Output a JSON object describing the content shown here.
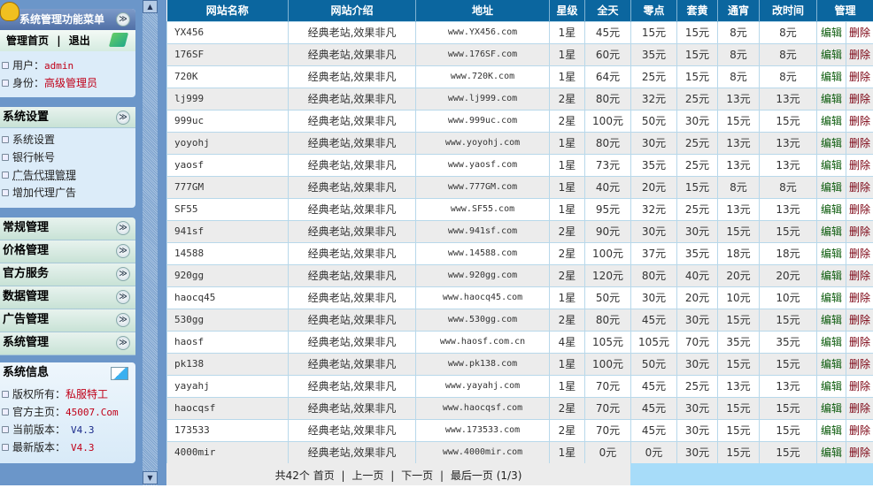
{
  "sidebar": {
    "menu_title": "系统管理功能菜单",
    "home_link": "管理首页",
    "sep": "|",
    "logout_link": "退出",
    "user_label": "用户：",
    "user_value": "admin",
    "role_label": "身份：",
    "role_value": "高级管理员",
    "settings_title": "系统设置",
    "settings_items": [
      "系统设置",
      "银行帐号",
      "广告代理管理",
      "增加代理广告"
    ],
    "sections": [
      "常规管理",
      "价格管理",
      "官方服务",
      "数据管理",
      "广告管理",
      "系统管理"
    ],
    "info_title": "系统信息",
    "info": [
      {
        "label": "版权所有：",
        "value": "私服特工"
      },
      {
        "label": "官方主页：",
        "value": "45007.Com"
      },
      {
        "label": "当前版本：",
        "value": "V4.3"
      },
      {
        "label": "最新版本：",
        "value": "V4.3"
      }
    ]
  },
  "table": {
    "headers": [
      "网站名称",
      "网站介绍",
      "地址",
      "星级",
      "全天",
      "零点",
      "套黄",
      "通宵",
      "改时间",
      "管理"
    ],
    "edit_label": "编辑",
    "delete_label": "删除",
    "rows": [
      [
        "YX456",
        "经典老站,效果非凡",
        "www.YX456.com",
        "1星",
        "45元",
        "15元",
        "15元",
        "8元",
        "8元"
      ],
      [
        "176SF",
        "经典老站,效果非凡",
        "www.176SF.com",
        "1星",
        "60元",
        "35元",
        "15元",
        "8元",
        "8元"
      ],
      [
        "720K",
        "经典老站,效果非凡",
        "www.720K.com",
        "1星",
        "64元",
        "25元",
        "15元",
        "8元",
        "8元"
      ],
      [
        "lj999",
        "经典老站,效果非凡",
        "www.lj999.com",
        "2星",
        "80元",
        "32元",
        "25元",
        "13元",
        "13元"
      ],
      [
        "999uc",
        "经典老站,效果非凡",
        "www.999uc.com",
        "2星",
        "100元",
        "50元",
        "30元",
        "15元",
        "15元"
      ],
      [
        "yoyohj",
        "经典老站,效果非凡",
        "www.yoyohj.com",
        "1星",
        "80元",
        "30元",
        "25元",
        "13元",
        "13元"
      ],
      [
        "yaosf",
        "经典老站,效果非凡",
        "www.yaosf.com",
        "1星",
        "73元",
        "35元",
        "25元",
        "13元",
        "13元"
      ],
      [
        "777GM",
        "经典老站,效果非凡",
        "www.777GM.com",
        "1星",
        "40元",
        "20元",
        "15元",
        "8元",
        "8元"
      ],
      [
        "SF55",
        "经典老站,效果非凡",
        "www.SF55.com",
        "1星",
        "95元",
        "32元",
        "25元",
        "13元",
        "13元"
      ],
      [
        "941sf",
        "经典老站,效果非凡",
        "www.941sf.com",
        "2星",
        "90元",
        "30元",
        "30元",
        "15元",
        "15元"
      ],
      [
        "14588",
        "经典老站,效果非凡",
        "www.14588.com",
        "2星",
        "100元",
        "37元",
        "35元",
        "18元",
        "18元"
      ],
      [
        "920gg",
        "经典老站,效果非凡",
        "www.920gg.com",
        "2星",
        "120元",
        "80元",
        "40元",
        "20元",
        "20元"
      ],
      [
        "haocq45",
        "经典老站,效果非凡",
        "www.haocq45.com",
        "1星",
        "50元",
        "30元",
        "20元",
        "10元",
        "10元"
      ],
      [
        "530gg",
        "经典老站,效果非凡",
        "www.530gg.com",
        "2星",
        "80元",
        "45元",
        "30元",
        "15元",
        "15元"
      ],
      [
        "haosf",
        "经典老站,效果非凡",
        "www.haosf.com.cn",
        "4星",
        "105元",
        "105元",
        "70元",
        "35元",
        "35元"
      ],
      [
        "pk138",
        "经典老站,效果非凡",
        "www.pk138.com",
        "1星",
        "100元",
        "50元",
        "30元",
        "15元",
        "15元"
      ],
      [
        "yayahj",
        "经典老站,效果非凡",
        "www.yayahj.com",
        "1星",
        "70元",
        "45元",
        "25元",
        "13元",
        "13元"
      ],
      [
        "haocqsf",
        "经典老站,效果非凡",
        "www.haocqsf.com",
        "2星",
        "70元",
        "45元",
        "30元",
        "15元",
        "15元"
      ],
      [
        "173533",
        "经典老站,效果非凡",
        "www.173533.com",
        "2星",
        "70元",
        "45元",
        "30元",
        "15元",
        "15元"
      ],
      [
        "4000mir",
        "经典老站,效果非凡",
        "www.4000mir.com",
        "1星",
        "0元",
        "0元",
        "30元",
        "15元",
        "15元"
      ]
    ]
  },
  "pager": {
    "total": "共42个",
    "first": "首页",
    "prev": "上一页",
    "next": "下一页",
    "last": "最后一页",
    "page": "(1/3)",
    "sep": "|"
  }
}
